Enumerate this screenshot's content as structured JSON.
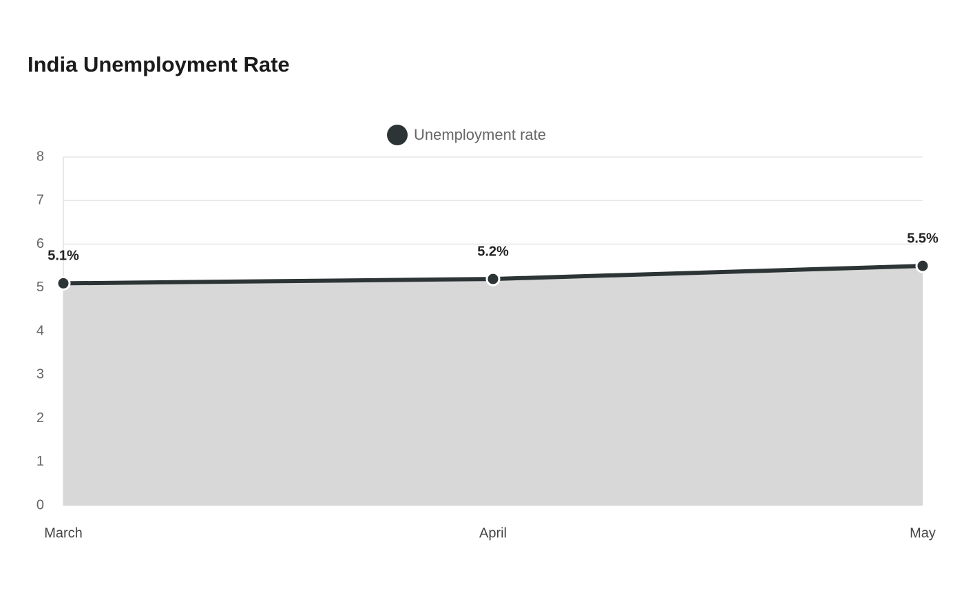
{
  "chart_data": {
    "type": "area",
    "title": "India Unemployment Rate",
    "categories": [
      "March",
      "April",
      "May"
    ],
    "series": [
      {
        "name": "Unemployment rate",
        "color": "#2d3436",
        "fill": "#d6d6d6",
        "values": [
          5.1,
          5.2,
          5.5
        ],
        "value_labels": [
          "5.1%",
          "5.2%",
          "5.5%"
        ]
      }
    ],
    "ylim": [
      0,
      8
    ],
    "yticks": [
      0,
      1,
      2,
      3,
      4,
      5,
      6,
      7,
      8
    ],
    "grid": true,
    "legend": "top"
  }
}
